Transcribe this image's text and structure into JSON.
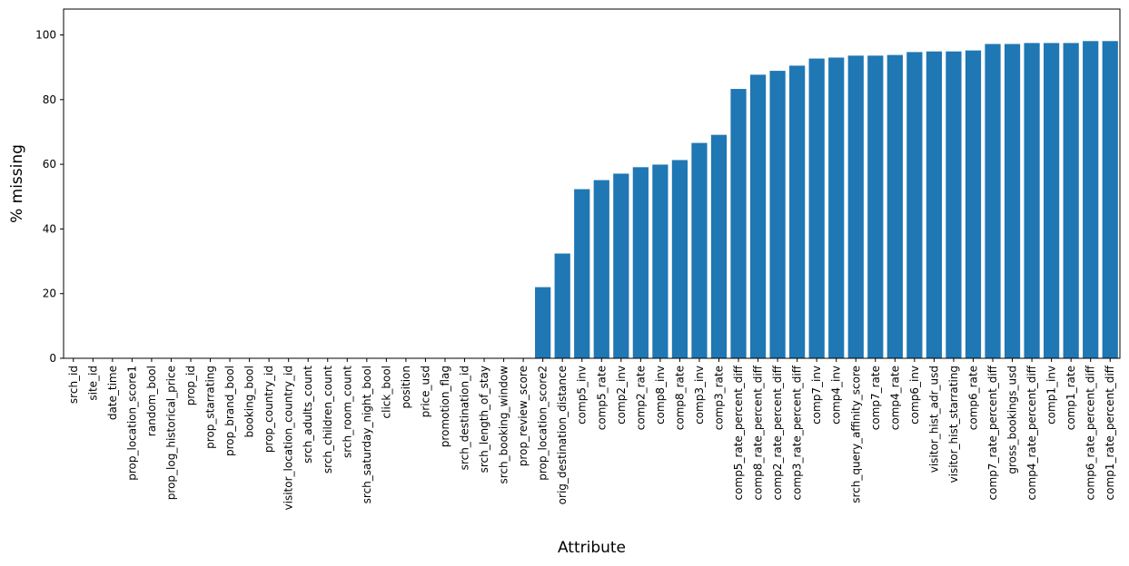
{
  "chart_data": {
    "type": "bar",
    "xlabel": "Attribute",
    "ylabel": "% missing",
    "ylim": [
      0,
      108
    ],
    "yticks": [
      0,
      20,
      40,
      60,
      80,
      100
    ],
    "grid": false,
    "bar_color": "#1f77b4",
    "categories": [
      "srch_id",
      "site_id",
      "date_time",
      "prop_location_score1",
      "random_bool",
      "prop_log_historical_price",
      "prop_id",
      "prop_starrating",
      "prop_brand_bool",
      "booking_bool",
      "prop_country_id",
      "visitor_location_country_id",
      "srch_adults_count",
      "srch_children_count",
      "srch_room_count",
      "srch_saturday_night_bool",
      "click_bool",
      "position",
      "price_usd",
      "promotion_flag",
      "srch_destination_id",
      "srch_length_of_stay",
      "srch_booking_window",
      "prop_review_score",
      "prop_location_score2",
      "orig_destination_distance",
      "comp5_inv",
      "comp5_rate",
      "comp2_inv",
      "comp2_rate",
      "comp8_inv",
      "comp8_rate",
      "comp3_inv",
      "comp3_rate",
      "comp5_rate_percent_diff",
      "comp8_rate_percent_diff",
      "comp2_rate_percent_diff",
      "comp3_rate_percent_diff",
      "comp7_inv",
      "comp4_inv",
      "srch_query_affinity_score",
      "comp7_rate",
      "comp4_rate",
      "comp6_inv",
      "visitor_hist_adr_usd",
      "visitor_hist_starrating",
      "comp6_rate",
      "comp7_rate_percent_diff",
      "gross_bookings_usd",
      "comp4_rate_percent_diff",
      "comp1_inv",
      "comp1_rate",
      "comp6_rate_percent_diff",
      "comp1_rate_percent_diff"
    ],
    "values": [
      0,
      0,
      0,
      0,
      0,
      0,
      0,
      0,
      0,
      0,
      0,
      0,
      0,
      0,
      0,
      0,
      0,
      0,
      0,
      0,
      0,
      0,
      0,
      0.15,
      22.0,
      32.4,
      52.3,
      55.1,
      57.1,
      59.1,
      59.9,
      61.3,
      66.6,
      69.1,
      83.3,
      87.7,
      88.9,
      90.5,
      92.7,
      93.0,
      93.6,
      93.6,
      93.8,
      94.7,
      94.9,
      94.9,
      95.2,
      97.2,
      97.2,
      97.5,
      97.5,
      97.5,
      98.1,
      98.1
    ]
  }
}
